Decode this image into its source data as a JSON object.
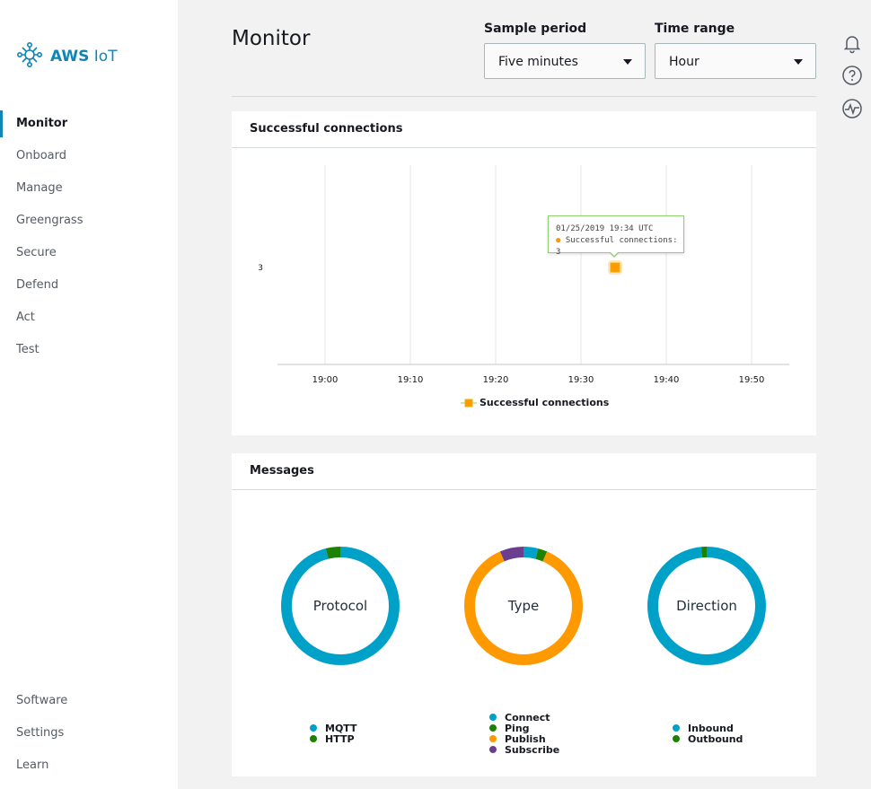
{
  "brand": {
    "name_bold": "AWS",
    "name_light": "IoT"
  },
  "sidebar": {
    "items": [
      {
        "label": "Monitor",
        "active": true
      },
      {
        "label": "Onboard"
      },
      {
        "label": "Manage"
      },
      {
        "label": "Greengrass"
      },
      {
        "label": "Secure"
      },
      {
        "label": "Defend"
      },
      {
        "label": "Act"
      },
      {
        "label": "Test"
      }
    ],
    "bottom_items": [
      {
        "label": "Software"
      },
      {
        "label": "Settings"
      },
      {
        "label": "Learn"
      }
    ]
  },
  "header": {
    "title": "Monitor",
    "sample_period": {
      "label": "Sample period",
      "value": "Five minutes"
    },
    "time_range": {
      "label": "Time range",
      "value": "Hour"
    }
  },
  "utility_icons": [
    "bell-icon",
    "help-icon",
    "activity-icon"
  ],
  "connections_panel": {
    "title": "Successful connections",
    "tooltip": {
      "timestamp": "01/25/2019 19:34 UTC",
      "series": "Successful connections",
      "value": "3"
    }
  },
  "messages_panel": {
    "title": "Messages",
    "donuts": [
      {
        "label": "Protocol",
        "segments": [
          {
            "name": "MQTT",
            "color": "#00a1c9",
            "fraction": 0.96
          },
          {
            "name": "HTTP",
            "color": "#1d8102",
            "fraction": 0.04
          }
        ]
      },
      {
        "label": "Type",
        "segments": [
          {
            "name": "Connect",
            "color": "#00a1c9",
            "fraction": 0.04
          },
          {
            "name": "Ping",
            "color": "#1d8102",
            "fraction": 0.025
          },
          {
            "name": "Publish",
            "color": "#ff9900",
            "fraction": 0.87
          },
          {
            "name": "Subscribe",
            "color": "#6b3e8e",
            "fraction": 0.065
          }
        ]
      },
      {
        "label": "Direction",
        "segments": [
          {
            "name": "Inbound",
            "color": "#00a1c9",
            "fraction": 0.985
          },
          {
            "name": "Outbound",
            "color": "#1d8102",
            "fraction": 0.015
          }
        ]
      }
    ]
  },
  "chart_data": {
    "type": "scatter",
    "title": "Successful connections",
    "x_ticks": [
      "19:00",
      "19:10",
      "19:20",
      "19:30",
      "19:40",
      "19:50"
    ],
    "y_ticks": [
      "3"
    ],
    "series": [
      {
        "name": "Successful connections",
        "color": "#ff9900",
        "points": [
          {
            "x": "19:34",
            "y": 3
          }
        ]
      }
    ],
    "grid": true,
    "legend": "bottom-center"
  }
}
